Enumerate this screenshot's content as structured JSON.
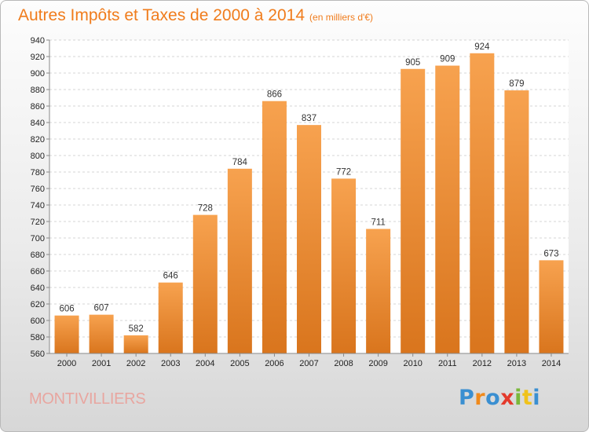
{
  "title": "Autres Impôts et Taxes de 2000 à 2014",
  "subtitle": "(en milliers d'€)",
  "commune": "MONTIVILLIERS",
  "logo": {
    "text": "Proxiti",
    "letter_colors": [
      "#3a8fd1",
      "#f08a1c",
      "#3a8fd1",
      "#e43a2c",
      "#7ab83a",
      "#f0c21c",
      "#3a8fd1"
    ]
  },
  "colors": {
    "accent": "#f07c1c",
    "bar_top": "#f7a24f",
    "bar_bottom": "#d9751d",
    "commune": "#e8a6a0"
  },
  "chart_data": {
    "type": "bar",
    "categories": [
      "2000",
      "2001",
      "2002",
      "2003",
      "2004",
      "2005",
      "2006",
      "2007",
      "2008",
      "2009",
      "2010",
      "2011",
      "2012",
      "2013",
      "2014"
    ],
    "values": [
      606,
      607,
      582,
      646,
      728,
      784,
      866,
      837,
      772,
      711,
      905,
      909,
      924,
      879,
      673
    ],
    "ylim": [
      560,
      940
    ],
    "ytick_step": 20,
    "grid": true
  }
}
